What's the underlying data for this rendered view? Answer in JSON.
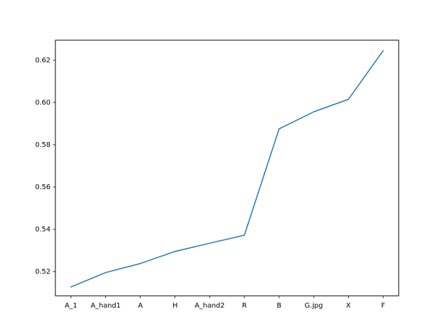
{
  "chart_data": {
    "type": "line",
    "title": "",
    "xlabel": "",
    "ylabel": "",
    "categories": [
      "A_1",
      "A_hand1",
      "A",
      "H",
      "A_hand2",
      "R",
      "B",
      "G.jpg",
      "X",
      "F"
    ],
    "values": [
      0.5127,
      0.5195,
      0.5238,
      0.5295,
      0.5334,
      0.5372,
      0.5875,
      0.5956,
      0.6015,
      0.6245
    ],
    "ylim": [
      0.5085,
      0.6295
    ],
    "yticks": [
      0.52,
      0.54,
      0.56,
      0.58,
      0.6,
      0.62
    ],
    "ytick_labels": [
      "0.52",
      "0.54",
      "0.56",
      "0.58",
      "0.60",
      "0.62"
    ],
    "grid": false,
    "legend": "none",
    "line_color": "#1f77b4"
  }
}
